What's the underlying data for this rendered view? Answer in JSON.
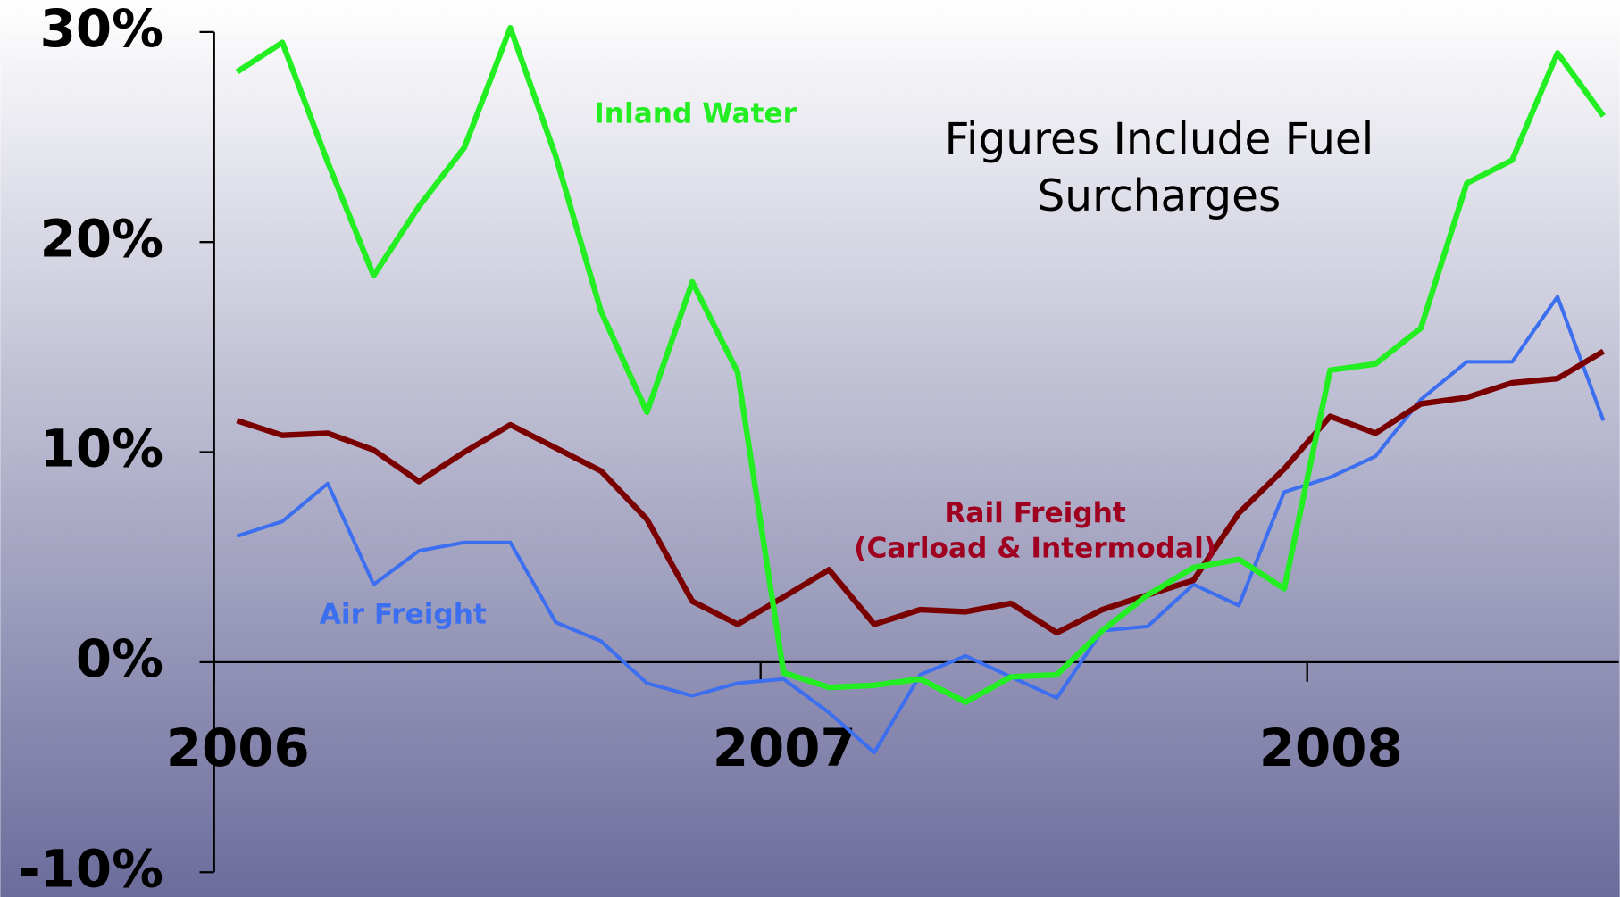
{
  "chart_data": {
    "type": "line",
    "annotation": [
      "Figures Include Fuel",
      "Surcharges"
    ],
    "x": [
      2006.042,
      2006.125,
      2006.208,
      2006.292,
      2006.375,
      2006.458,
      2006.542,
      2006.625,
      2006.708,
      2006.792,
      2006.875,
      2006.958,
      2007.042,
      2007.125,
      2007.208,
      2007.292,
      2007.375,
      2007.458,
      2007.542,
      2007.625,
      2007.708,
      2007.792,
      2007.875,
      2007.958,
      2008.042,
      2008.125,
      2008.208,
      2008.292,
      2008.375,
      2008.458,
      2008.542
    ],
    "series": [
      {
        "name": "Air Freight",
        "color": "#3c6ef0",
        "values": [
          6.0,
          6.7,
          8.5,
          3.7,
          5.3,
          5.7,
          5.7,
          1.9,
          1.0,
          -1.0,
          -1.6,
          -1.0,
          -0.8,
          -2.4,
          -4.3,
          -0.6,
          0.3,
          -0.7,
          -1.7,
          1.5,
          1.7,
          3.7,
          2.7,
          8.1,
          8.8,
          9.8,
          12.5,
          14.3,
          14.3,
          17.4,
          11.5
        ]
      },
      {
        "name": "Rail Freight",
        "note": "(Carload & Intermodal)",
        "color": "#7a0000",
        "values": [
          11.5,
          10.8,
          10.9,
          10.1,
          8.6,
          10.0,
          11.3,
          10.2,
          9.1,
          6.8,
          2.9,
          1.8,
          3.1,
          4.4,
          1.8,
          2.5,
          2.4,
          2.8,
          1.4,
          2.5,
          3.2,
          3.9,
          7.1,
          9.2,
          11.7,
          10.9,
          12.3,
          12.6,
          13.3,
          13.5,
          14.8
        ]
      },
      {
        "name": "Inland Water",
        "color": "#22ee22",
        "values": [
          28.1,
          29.5,
          23.8,
          18.4,
          21.7,
          24.5,
          30.2,
          24.1,
          16.7,
          11.9,
          18.1,
          13.8,
          -0.5,
          -1.2,
          -1.1,
          -0.8,
          -1.9,
          -0.7,
          -0.6,
          1.5,
          3.2,
          4.5,
          4.9,
          3.5,
          13.9,
          14.2,
          15.9,
          22.8,
          23.9,
          29.0,
          26.0
        ]
      }
    ],
    "xlim": [
      2006,
      2008.57
    ],
    "xticks": [
      2006,
      2007,
      2008
    ],
    "ylim": [
      -10,
      30
    ],
    "yticks": [
      {
        "value": -10,
        "label": "-10%"
      },
      {
        "value": 0,
        "label": "0%"
      },
      {
        "value": 10,
        "label": "10%"
      },
      {
        "value": 20,
        "label": "20%"
      },
      {
        "value": 30,
        "label": "30%"
      }
    ]
  }
}
